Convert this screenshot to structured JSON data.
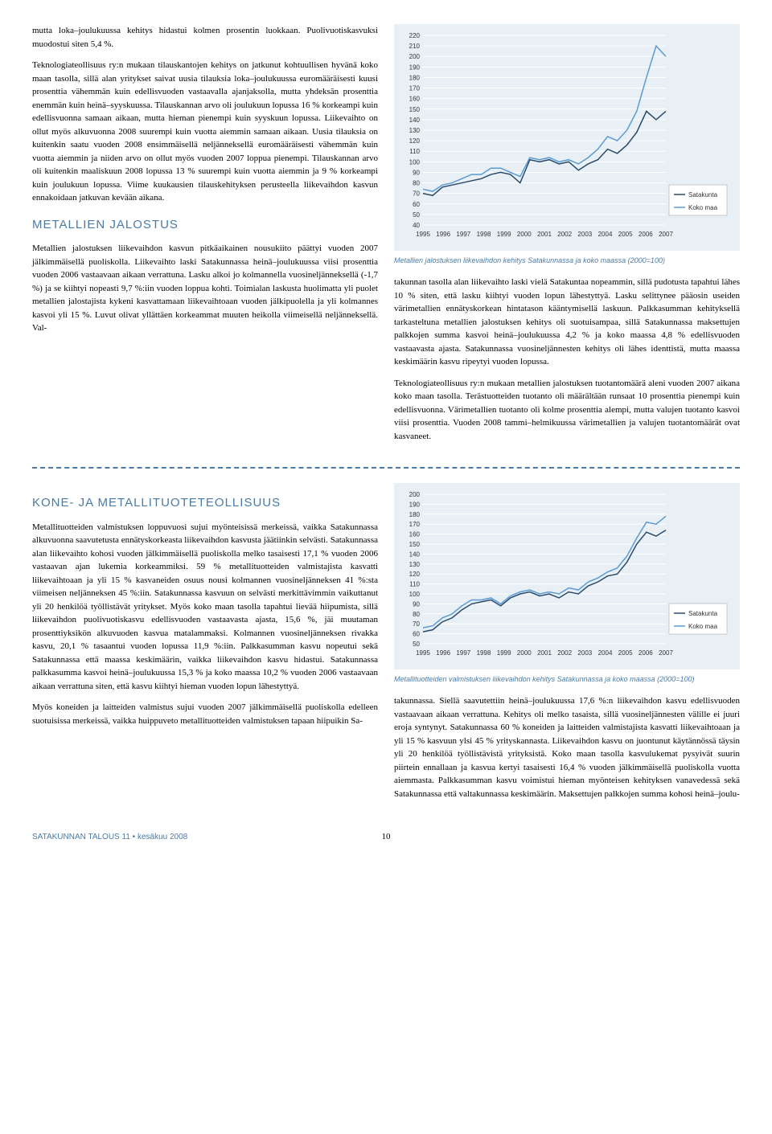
{
  "footer": "SATAKUNNAN TALOUS 11 • kesäkuu 2008",
  "page_number": "10",
  "headings": {
    "metallien_jalostus": "METALLIEN JALOSTUS",
    "kone_metalli": "KONE- JA METALLITUOTETEOLLISUUS"
  },
  "paras": {
    "p1": "mutta loka–joulukuussa kehitys hidastui kolmen prosentin luokkaan. Puolivuotiskasvuksi muodostui siten 5,4 %.",
    "p2": "Teknologiateollisuus ry:n mukaan tilauskantojen kehitys on jatkunut kohtuullisen hyvänä koko maan tasolla, sillä alan yritykset saivat uusia tilauksia loka–joulukuussa euromääräisesti kuusi prosenttia vähemmän kuin edellisvuoden vastaavalla ajanjaksolla, mutta yhdeksän prosenttia enemmän kuin heinä–syyskuussa. Tilauskannan arvo oli joulukuun lopussa 16 % korkeampi kuin edellisvuonna samaan aikaan, mutta hieman pienempi kuin syyskuun lopussa. Liikevaihto on ollut myös alkuvuonna 2008 suurempi kuin vuotta aiemmin samaan aikaan. Uusia tilauksia on kuitenkin saatu vuoden 2008 ensimmäisellä neljänneksellä euromääräisesti vähemmän kuin vuotta aiemmin ja niiden arvo on ollut myös vuoden 2007 loppua pienempi. Tilauskannan arvo oli kuitenkin maaliskuun 2008 lopussa 13 % suurempi kuin vuotta aiemmin ja 9 % korkeampi kuin joulukuun lopussa. Viime kuukausien tilauskehityksen perusteella liikevaihdon kasvun ennakoidaan jatkuvan kevään aikana.",
    "p3": "Metallien jalostuksen liikevaihdon kasvun pitkäaikainen nousukiito päättyi vuoden 2007 jälkimmäisellä puoliskolla. Liikevaihto laski Satakunnassa heinä–joulukuussa viisi prosenttia vuoden 2006 vastaavaan aikaan verrattuna. Lasku alkoi jo kolmannella vuosineljänneksellä (-1,7 %) ja se kiihtyi nopeasti 9,7 %:iin vuoden loppua kohti. Toimialan laskusta huolimatta yli puolet metallien jalostajista kykeni kasvattamaan liikevaihtoaan vuoden jälkipuolella ja yli kolmannes kasvoi yli 15 %. Luvut olivat yllättäen korkeammat muuten heikolla viimeisellä neljänneksellä. Val-",
    "p4": "takunnan tasolla alan liikevaihto laski vielä Satakuntaa nopeammin, sillä pudotusta tapahtui lähes 10 % siten, että lasku kiihtyi vuoden lopun lähestyttyä. Lasku selittynee pääosin useiden värimetallien ennätyskorkean hintatason kääntymisellä laskuun. Palkkasumman kehityksellä tarkasteltuna metallien jalostuksen kehitys oli suotuisampaa, sillä Satakunnassa maksettujen palkkojen summa kasvoi heinä–joulukuussa 4,2 % ja koko maassa 4,8 % edellisvuoden vastaavasta ajasta. Satakunnassa vuosineljännesten kehitys oli lähes identtistä, mutta maassa keskimäärin kasvu ripeytyi vuoden lopussa.",
    "p5": "Teknologiateollisuus ry:n mukaan metallien jalostuksen tuotantomäärä aleni vuoden 2007 aikana koko maan tasolla. Terästuotteiden tuotanto oli määrältään runsaat 10 prosenttia pienempi kuin edellisvuonna. Värimetallien tuotanto oli kolme prosenttia alempi, mutta valujen tuotanto kasvoi viisi prosenttia. Vuoden 2008 tammi–helmikuussa värimetallien ja valujen tuotantomäärät ovat kasvaneet.",
    "p6": "Metallituotteiden valmistuksen loppuvuosi sujui myönteisissä merkeissä, vaikka Satakunnassa alkuvuonna saavutetusta ennätyskorkeasta liikevaihdon kasvusta jäätiinkin selvästi. Satakunnassa alan liikevaihto kohosi vuoden jälkimmäisellä puoliskolla melko tasaisesti 17,1 % vuoden 2006 vastaavan ajan lukemia korkeammiksi. 59 % metallituotteiden valmistajista kasvatti liikevaihtoaan ja yli 15 % kasvaneiden osuus nousi kolmannen vuosineljänneksen 41 %:sta viimeisen neljänneksen 45 %:iin. Satakunnassa kasvuun on selvästi merkittävimmin vaikuttanut yli 20 henkilöä työllistävät yritykset. Myös koko maan tasolla tapahtui lievää hiipumista, sillä liikevaihdon puolivuotiskasvu edellisvuoden vastaavasta ajasta, 15,6 %, jäi muutaman prosenttiyksikön alkuvuoden kasvua matalammaksi. Kolmannen vuosineljänneksen rivakka kasvu, 20,1 % tasaantui vuoden lopussa 11,9 %:iin. Palkkasumman kasvu nopeutui sekä Satakunnassa että maassa keskimäärin, vaikka liikevaihdon kasvu hidastui. Satakunnassa palkkasumma kasvoi heinä–joulukuussa 15,3 % ja koko maassa 10,2 % vuoden 2006 vastaavaan aikaan verrattuna siten, että kasvu kiihtyi hieman vuoden lopun lähestyttyä.",
    "p7": "Myös koneiden ja laitteiden valmistus sujui vuoden 2007 jälkimmäisellä puoliskolla edelleen suotuisissa merkeissä, vaikka huippuveto metallituotteiden valmistuksen tapaan hiipuikin Sa-",
    "p8": "takunnassa. Siellä saavutettiin heinä–joulukuussa 17,6 %:n liikevaihdon kasvu edellisvuoden vastaavaan aikaan verrattuna. Kehitys oli melko tasaista, sillä vuosineljännesten välille ei juuri eroja syntynyt. Satakunnassa 60 % koneiden ja laitteiden valmistajista kasvatti liikevaihtoaan ja yli 15 % kasvuun ylsi 45 % yrityskannasta. Liikevaihdon kasvu on juontunut käytännössä täysin yli 20 henkilöä työllistävistä yrityksistä. Koko maan tasolla kasvulukemat pysyivät suurin piirtein ennallaan ja kasvua kertyi tasaisesti 16,4 % vuoden jälkimmäisellä puoliskolla vuotta aiemmasta. Palkkasumman kasvu voimistui hieman myönteisen kehityksen vanavedessä sekä Satakunnassa että valtakunnassa keskimäärin. Maksettujen palkkojen summa kohosi heinä–joulu-"
  },
  "chart1": {
    "caption": "Metallien jalostuksen liikevaihdon kehitys Satakunnassa ja koko maassa (2000=100)",
    "ylim": [
      40,
      220
    ],
    "ytick_step": 10,
    "years": [
      "1995",
      "1996",
      "1997",
      "1998",
      "1999",
      "2000",
      "2001",
      "2002",
      "2003",
      "2004",
      "2005",
      "2006",
      "2007"
    ],
    "legend": [
      "Satakunta",
      "Koko maa"
    ],
    "colors": {
      "satakunta": "#2a4a6a",
      "kokomaa": "#5a9bd5",
      "bg": "#e8eff5",
      "grid": "#ffffff",
      "text": "#333333"
    },
    "satakunta": [
      70,
      68,
      76,
      78,
      80,
      82,
      84,
      88,
      90,
      88,
      80,
      102,
      100,
      102,
      98,
      100,
      92,
      98,
      102,
      112,
      108,
      116,
      128,
      148,
      140,
      148
    ],
    "kokomaa": [
      74,
      72,
      78,
      80,
      84,
      88,
      88,
      94,
      94,
      90,
      86,
      104,
      102,
      104,
      100,
      102,
      98,
      104,
      112,
      124,
      120,
      130,
      148,
      180,
      210,
      200
    ]
  },
  "chart2": {
    "caption": "Metallituotteiden valmistuksen liikevaihdon kehitys Satakunnassa ja koko maassa (2000=100)",
    "ylim": [
      50,
      200
    ],
    "ytick_step": 10,
    "years": [
      "1995",
      "1996",
      "1997",
      "1998",
      "1999",
      "2000",
      "2001",
      "2002",
      "2003",
      "2004",
      "2005",
      "2006",
      "2007"
    ],
    "legend": [
      "Satakunta",
      "Koko maa"
    ],
    "colors": {
      "satakunta": "#2a4a6a",
      "kokomaa": "#5a9bd5",
      "bg": "#e8eff5",
      "grid": "#ffffff",
      "text": "#333333"
    },
    "satakunta": [
      62,
      64,
      72,
      76,
      84,
      90,
      92,
      94,
      88,
      96,
      100,
      102,
      98,
      100,
      96,
      102,
      100,
      108,
      112,
      118,
      120,
      132,
      150,
      162,
      158,
      164
    ],
    "kokomaa": [
      66,
      68,
      76,
      80,
      88,
      94,
      94,
      96,
      90,
      98,
      102,
      104,
      100,
      102,
      100,
      106,
      104,
      112,
      116,
      122,
      126,
      138,
      156,
      172,
      170,
      178
    ]
  }
}
